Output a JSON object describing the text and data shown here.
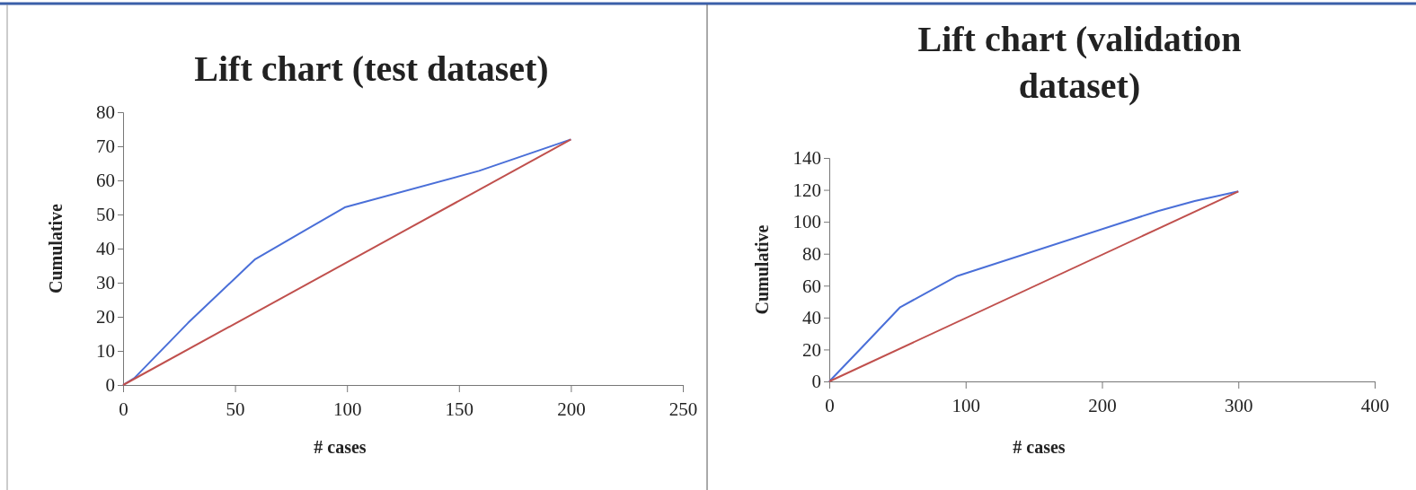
{
  "chart_data": [
    {
      "type": "line",
      "title": "Lift chart (test dataset)",
      "xlabel": "# cases",
      "ylabel": "Cumulative",
      "xlim": [
        0,
        250
      ],
      "xticks": [
        0,
        50,
        100,
        150,
        200,
        250
      ],
      "ylim": [
        0,
        80
      ],
      "yticks": [
        0,
        10,
        20,
        30,
        40,
        50,
        60,
        70,
        80
      ],
      "series": [
        {
          "color": "#4a6fd8",
          "x": [
            0,
            5,
            29,
            59,
            99,
            159,
            200
          ],
          "values": [
            0,
            2,
            18.2,
            36.9,
            52.1,
            62.8,
            72
          ]
        },
        {
          "color": "#c0504d",
          "x": [
            0,
            200
          ],
          "values": [
            0,
            72
          ]
        }
      ]
    },
    {
      "type": "line",
      "title": "Lift chart (validation dataset)",
      "xlabel": "# cases",
      "ylabel": "Cumulative",
      "xlim": [
        0,
        400
      ],
      "xticks": [
        0,
        100,
        200,
        300,
        400
      ],
      "ylim": [
        0,
        140
      ],
      "yticks": [
        0,
        20,
        40,
        60,
        80,
        100,
        120,
        140
      ],
      "series": [
        {
          "color": "#4a6fd8",
          "x": [
            0,
            24,
            52,
            94,
            241,
            268,
            300
          ],
          "values": [
            0,
            21.4,
            46.5,
            66.1,
            106.7,
            113,
            119
          ]
        },
        {
          "color": "#c0504d",
          "x": [
            0,
            300
          ],
          "values": [
            0,
            119
          ]
        }
      ]
    }
  ]
}
